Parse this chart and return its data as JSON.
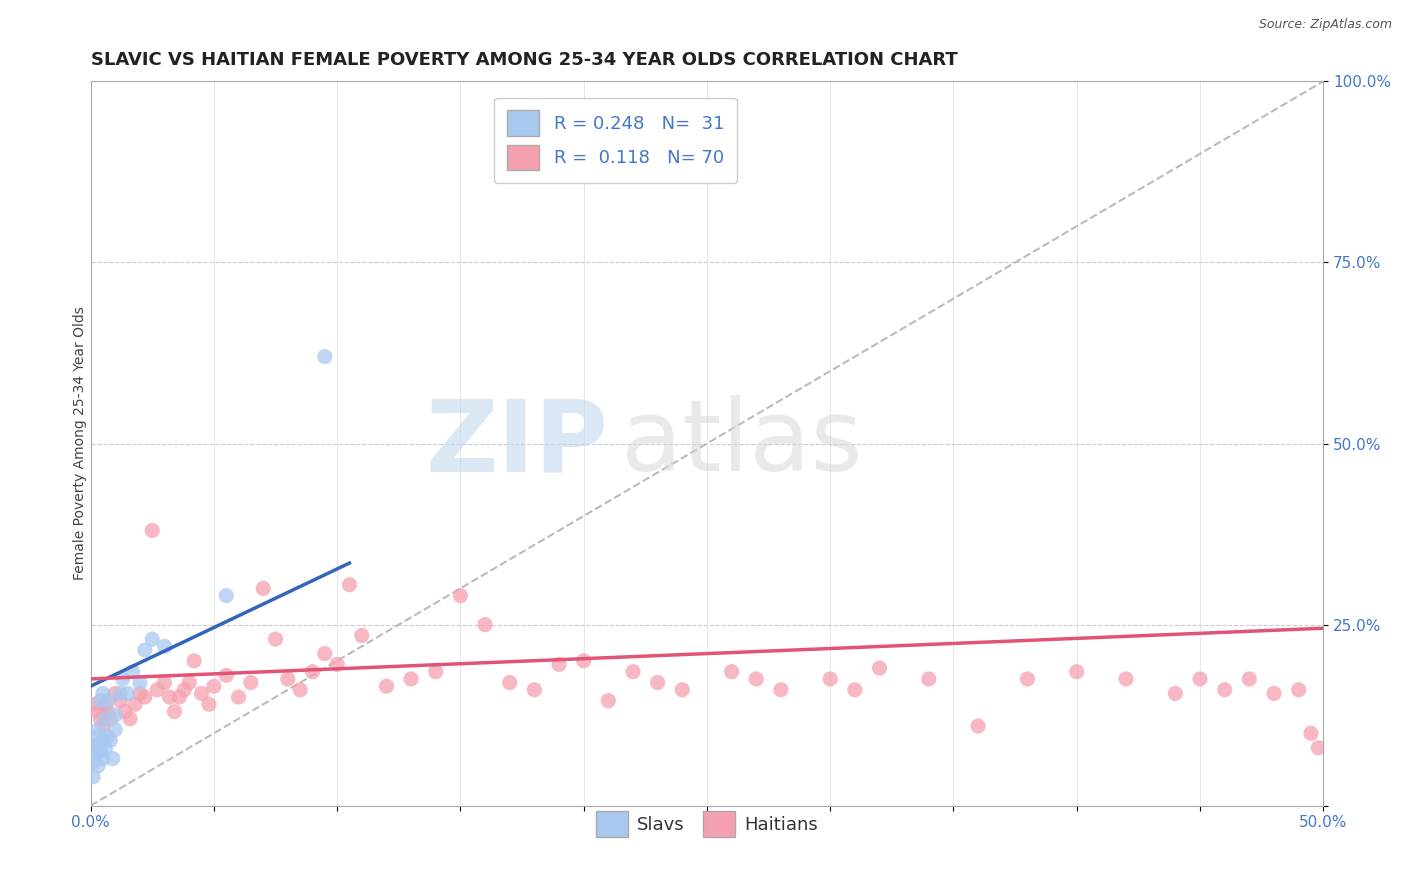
{
  "title": "SLAVIC VS HAITIAN FEMALE POVERTY AMONG 25-34 YEAR OLDS CORRELATION CHART",
  "source": "Source: ZipAtlas.com",
  "ylabel": "Female Poverty Among 25-34 Year Olds",
  "xlim": [
    0.0,
    0.5
  ],
  "ylim": [
    0.0,
    1.0
  ],
  "slavic_R": "0.248",
  "slavic_N": "31",
  "haitian_R": "0.118",
  "haitian_N": "70",
  "slavic_color": "#a8c8f0",
  "haitian_color": "#f5a0b0",
  "slavic_line_color": "#3366bb",
  "haitian_line_color": "#e05575",
  "trendline_slavic": [
    0.0,
    0.165,
    0.105,
    0.335
  ],
  "trendline_haitian": [
    0.0,
    0.175,
    0.5,
    0.245
  ],
  "diagonal_line": [
    0.0,
    0.0,
    0.5,
    1.0
  ],
  "slavic_x": [
    0.001,
    0.001,
    0.001,
    0.002,
    0.002,
    0.003,
    0.003,
    0.003,
    0.004,
    0.004,
    0.005,
    0.005,
    0.005,
    0.006,
    0.006,
    0.007,
    0.007,
    0.008,
    0.009,
    0.01,
    0.01,
    0.012,
    0.013,
    0.015,
    0.017,
    0.02,
    0.022,
    0.025,
    0.03,
    0.055,
    0.095
  ],
  "slavic_y": [
    0.04,
    0.06,
    0.08,
    0.07,
    0.095,
    0.055,
    0.085,
    0.105,
    0.075,
    0.145,
    0.065,
    0.09,
    0.155,
    0.08,
    0.12,
    0.095,
    0.145,
    0.09,
    0.065,
    0.105,
    0.125,
    0.155,
    0.175,
    0.155,
    0.185,
    0.17,
    0.215,
    0.23,
    0.22,
    0.29,
    0.62
  ],
  "haitian_x": [
    0.002,
    0.003,
    0.004,
    0.005,
    0.006,
    0.007,
    0.008,
    0.01,
    0.012,
    0.014,
    0.016,
    0.018,
    0.02,
    0.022,
    0.025,
    0.027,
    0.03,
    0.032,
    0.034,
    0.036,
    0.038,
    0.04,
    0.042,
    0.045,
    0.048,
    0.05,
    0.055,
    0.06,
    0.065,
    0.07,
    0.075,
    0.08,
    0.085,
    0.09,
    0.095,
    0.1,
    0.105,
    0.11,
    0.12,
    0.13,
    0.14,
    0.15,
    0.16,
    0.17,
    0.18,
    0.19,
    0.2,
    0.21,
    0.22,
    0.23,
    0.24,
    0.26,
    0.27,
    0.28,
    0.3,
    0.31,
    0.32,
    0.34,
    0.36,
    0.38,
    0.4,
    0.42,
    0.44,
    0.45,
    0.46,
    0.47,
    0.48,
    0.49,
    0.495,
    0.498
  ],
  "haitian_y": [
    0.14,
    0.13,
    0.12,
    0.11,
    0.14,
    0.13,
    0.12,
    0.155,
    0.145,
    0.13,
    0.12,
    0.14,
    0.155,
    0.15,
    0.38,
    0.16,
    0.17,
    0.15,
    0.13,
    0.15,
    0.16,
    0.17,
    0.2,
    0.155,
    0.14,
    0.165,
    0.18,
    0.15,
    0.17,
    0.3,
    0.23,
    0.175,
    0.16,
    0.185,
    0.21,
    0.195,
    0.305,
    0.235,
    0.165,
    0.175,
    0.185,
    0.29,
    0.25,
    0.17,
    0.16,
    0.195,
    0.2,
    0.145,
    0.185,
    0.17,
    0.16,
    0.185,
    0.175,
    0.16,
    0.175,
    0.16,
    0.19,
    0.175,
    0.11,
    0.175,
    0.185,
    0.175,
    0.155,
    0.175,
    0.16,
    0.175,
    0.155,
    0.16,
    0.1,
    0.08
  ],
  "background_color": "#ffffff",
  "watermark_zip": "ZIP",
  "watermark_atlas": "atlas",
  "title_fontsize": 13,
  "axis_label_fontsize": 10,
  "tick_fontsize": 11,
  "legend_fontsize": 13,
  "tick_color": "#4477cc"
}
